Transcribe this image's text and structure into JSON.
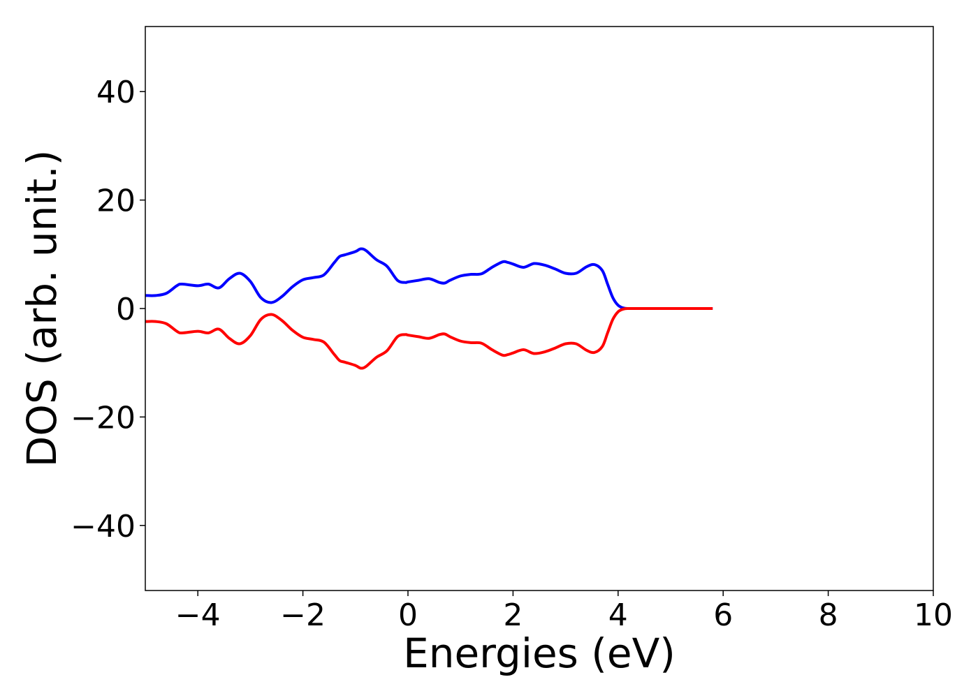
{
  "chart_data": {
    "type": "line",
    "title": "",
    "xlabel": "Energies (eV)",
    "ylabel": "DOS (arb. unit.)",
    "xlim": [
      -5,
      10
    ],
    "ylim": [
      -52,
      52
    ],
    "grid": false,
    "x_ticks": [
      -4,
      -2,
      0,
      2,
      4,
      6,
      8,
      10
    ],
    "y_ticks": [
      -40,
      -20,
      0,
      20,
      40
    ],
    "x_tick_labels": [
      "−4",
      "−2",
      "0",
      "2",
      "4",
      "6",
      "8",
      "10"
    ],
    "y_tick_labels": [
      "−40",
      "−20",
      "0",
      "20",
      "40"
    ],
    "series": [
      {
        "color": "#0000ff",
        "x": [
          -5.0,
          -4.8,
          -4.6,
          -4.4,
          -4.3,
          -4.0,
          -3.8,
          -3.6,
          -3.4,
          -3.2,
          -3.0,
          -2.8,
          -2.6,
          -2.4,
          -2.2,
          -2.0,
          -1.8,
          -1.6,
          -1.4,
          -1.3,
          -1.2,
          -1.0,
          -0.9,
          -0.8,
          -0.6,
          -0.4,
          -0.2,
          -0.05,
          0.0,
          0.2,
          0.4,
          0.6,
          0.7,
          0.8,
          1.0,
          1.2,
          1.4,
          1.6,
          1.8,
          1.9,
          2.0,
          2.2,
          2.4,
          2.6,
          2.8,
          3.0,
          3.2,
          3.4,
          3.55,
          3.7,
          3.8,
          3.9,
          4.0,
          4.1,
          4.2,
          4.4,
          5.0,
          5.8
        ],
        "y": [
          2.4,
          2.4,
          2.8,
          4.2,
          4.5,
          4.2,
          4.5,
          3.8,
          5.5,
          6.5,
          5.0,
          2.0,
          1.1,
          2.2,
          4.0,
          5.3,
          5.7,
          6.2,
          8.5,
          9.6,
          9.9,
          10.5,
          11.0,
          10.7,
          9.0,
          7.8,
          5.2,
          4.8,
          4.9,
          5.2,
          5.5,
          4.8,
          4.7,
          5.2,
          6.0,
          6.3,
          6.4,
          7.6,
          8.6,
          8.5,
          8.2,
          7.6,
          8.3,
          8.0,
          7.3,
          6.5,
          6.5,
          7.7,
          8.1,
          7.0,
          4.5,
          2.0,
          0.6,
          0.1,
          0.0,
          0.0,
          0.0,
          0.0
        ]
      },
      {
        "color": "#ff0000",
        "x": [
          -5.0,
          -4.8,
          -4.6,
          -4.4,
          -4.3,
          -4.0,
          -3.8,
          -3.6,
          -3.4,
          -3.2,
          -3.0,
          -2.8,
          -2.6,
          -2.4,
          -2.2,
          -2.0,
          -1.8,
          -1.6,
          -1.4,
          -1.3,
          -1.2,
          -1.0,
          -0.9,
          -0.8,
          -0.6,
          -0.4,
          -0.2,
          -0.05,
          0.0,
          0.2,
          0.4,
          0.6,
          0.7,
          0.8,
          1.0,
          1.2,
          1.4,
          1.6,
          1.8,
          1.9,
          2.0,
          2.2,
          2.4,
          2.6,
          2.8,
          3.0,
          3.2,
          3.4,
          3.55,
          3.7,
          3.8,
          3.9,
          4.0,
          4.1,
          4.2,
          4.4,
          5.0,
          5.8
        ],
        "y": [
          -2.4,
          -2.4,
          -2.8,
          -4.2,
          -4.5,
          -4.2,
          -4.5,
          -3.8,
          -5.5,
          -6.5,
          -5.0,
          -2.0,
          -1.1,
          -2.2,
          -4.0,
          -5.3,
          -5.7,
          -6.2,
          -8.5,
          -9.6,
          -9.9,
          -10.5,
          -11.0,
          -10.7,
          -9.0,
          -7.8,
          -5.2,
          -4.8,
          -4.9,
          -5.2,
          -5.5,
          -4.8,
          -4.7,
          -5.2,
          -6.0,
          -6.3,
          -6.4,
          -7.6,
          -8.6,
          -8.5,
          -8.2,
          -7.6,
          -8.3,
          -8.0,
          -7.3,
          -6.5,
          -6.5,
          -7.7,
          -8.1,
          -7.0,
          -4.5,
          -2.0,
          -0.6,
          -0.1,
          0.0,
          0.0,
          0.0,
          0.0
        ]
      }
    ]
  }
}
